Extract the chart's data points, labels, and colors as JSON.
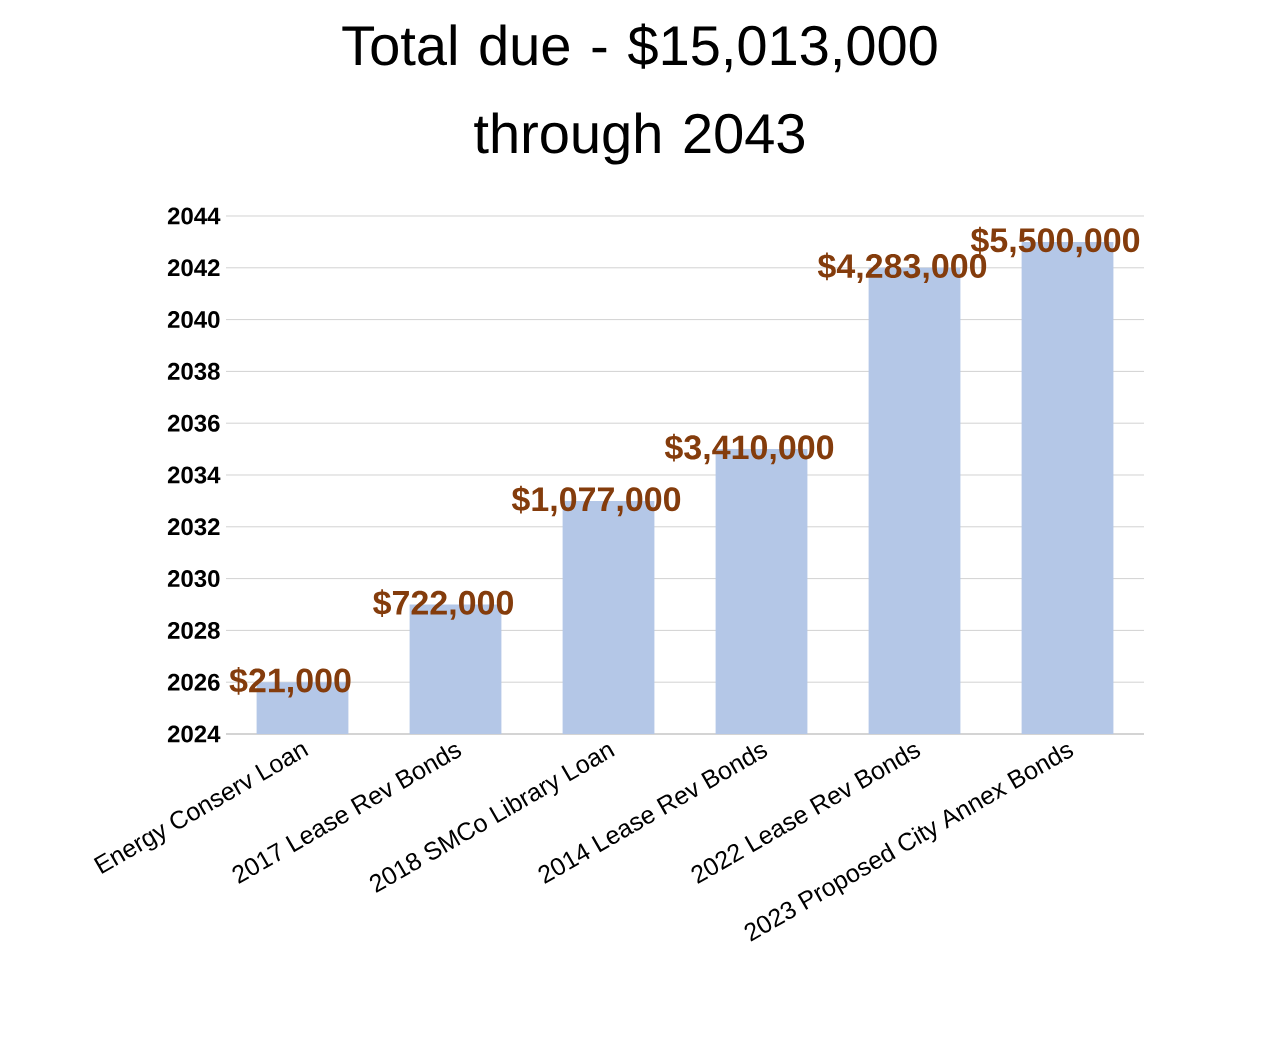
{
  "chart_data": {
    "type": "bar",
    "title": "Total due - $15,013,000 through 2043",
    "categories": [
      "Energy Conserv Loan",
      "2017 Lease Rev Bonds",
      "2018 SMCo Library Loan",
      "2014 Lease Rev Bonds",
      "2022 Lease Rev Bonds",
      "2023 Proposed City Annex Bonds"
    ],
    "values": [
      2026,
      2029,
      2033,
      2035,
      2042,
      2043
    ],
    "annotations": [
      {
        "text": "$21,000",
        "x": "Energy Conserv Loan",
        "y": 2026
      },
      {
        "text": "$722,000",
        "x": "2017 Lease Rev Bonds",
        "y": 2029
      },
      {
        "text": "$1,077,000",
        "x": "2018 SMCo Library Loan",
        "y": 2033
      },
      {
        "text": "$3,410,000",
        "x": "2014 Lease Rev Bonds",
        "y": 2035
      },
      {
        "text": "$4,283,000",
        "x": "2022 Lease Rev Bonds",
        "y": 2042
      },
      {
        "text": "$5,500,000",
        "x": "2023 Proposed City Annex Bonds",
        "y": 2043
      }
    ],
    "color": "#b4c7e7",
    "ylim": [
      2024,
      2044
    ],
    "yticks": [
      2024,
      2026,
      2028,
      2030,
      2032,
      2034,
      2036,
      2038,
      2040,
      2042,
      2044
    ],
    "grid": "y"
  }
}
